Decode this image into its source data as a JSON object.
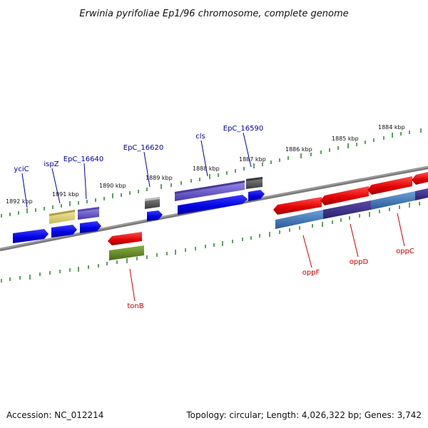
{
  "title": "Erwinia pyrifoliae Ep1/96 chromosome, complete genome",
  "footer": {
    "accession": "Accession: NC_012214",
    "summary": "Topology: circular; Length: 4,026,322 bp; Genes: 3,742"
  },
  "colors": {
    "forward_strand": "#0000ee",
    "reverse_strand": "#ee0000",
    "backbone": "#808080",
    "ticks": "#1a7a1a"
  },
  "ruler_labels": [
    "1892 kbp",
    "1891 kbp",
    "1890 kbp",
    "1889 kbp",
    "1888 kbp",
    "1887 kbp",
    "1886 kbp",
    "1885 kbp",
    "1884 kbp"
  ],
  "gene_labels": [
    "yciC",
    "ispZ",
    "EpC_16640",
    "EpC_16620",
    "cls",
    "EpC_16590",
    "tonB",
    "oppF",
    "oppD",
    "oppC"
  ]
}
